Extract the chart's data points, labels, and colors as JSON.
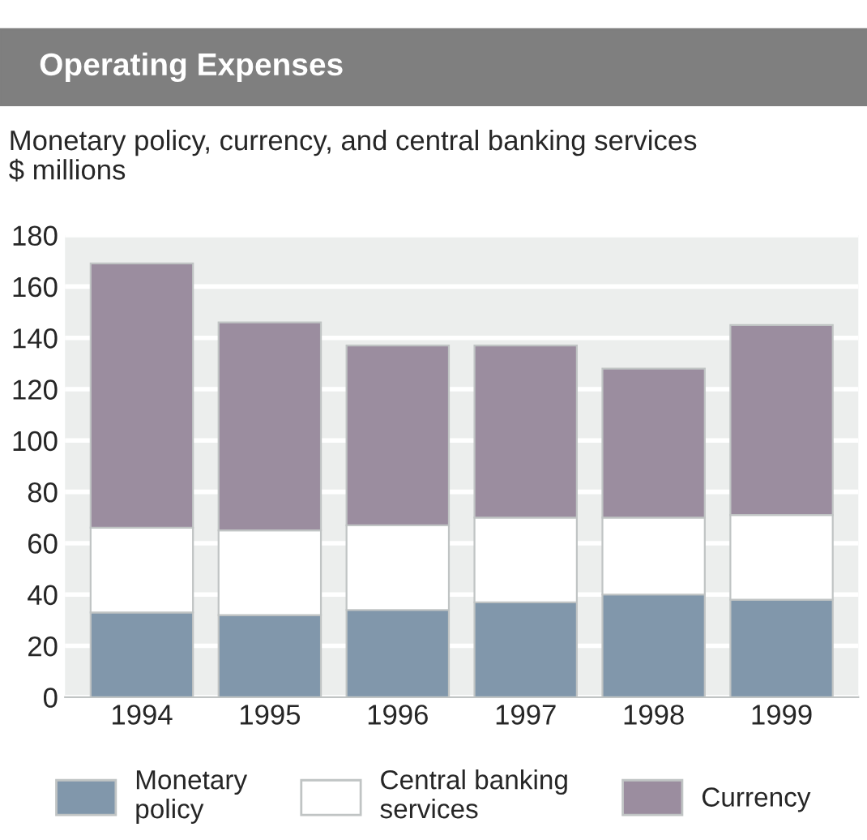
{
  "chart_data": {
    "type": "bar",
    "stacked": true,
    "title": "Operating Expenses",
    "subtitle": "Monetary policy, currency, and central banking services",
    "ylabel": "$ millions",
    "categories": [
      "1994",
      "1995",
      "1996",
      "1997",
      "1998",
      "1999"
    ],
    "series": [
      {
        "name": "Monetary\npolicy",
        "color": "#8197ab",
        "values": [
          33,
          32,
          34,
          37,
          40,
          38
        ]
      },
      {
        "name": "Central banking\nservices",
        "color": "#ffffff",
        "values": [
          33,
          33,
          33,
          33,
          30,
          33
        ]
      },
      {
        "name": "Currency",
        "color": "#9b8d9f",
        "values": [
          103,
          81,
          70,
          67,
          58,
          74
        ]
      }
    ],
    "ylim": [
      0,
      180
    ],
    "yticks": [
      0,
      20,
      40,
      60,
      80,
      100,
      120,
      140,
      160,
      180
    ],
    "grid": "y",
    "legend": "bottom"
  }
}
